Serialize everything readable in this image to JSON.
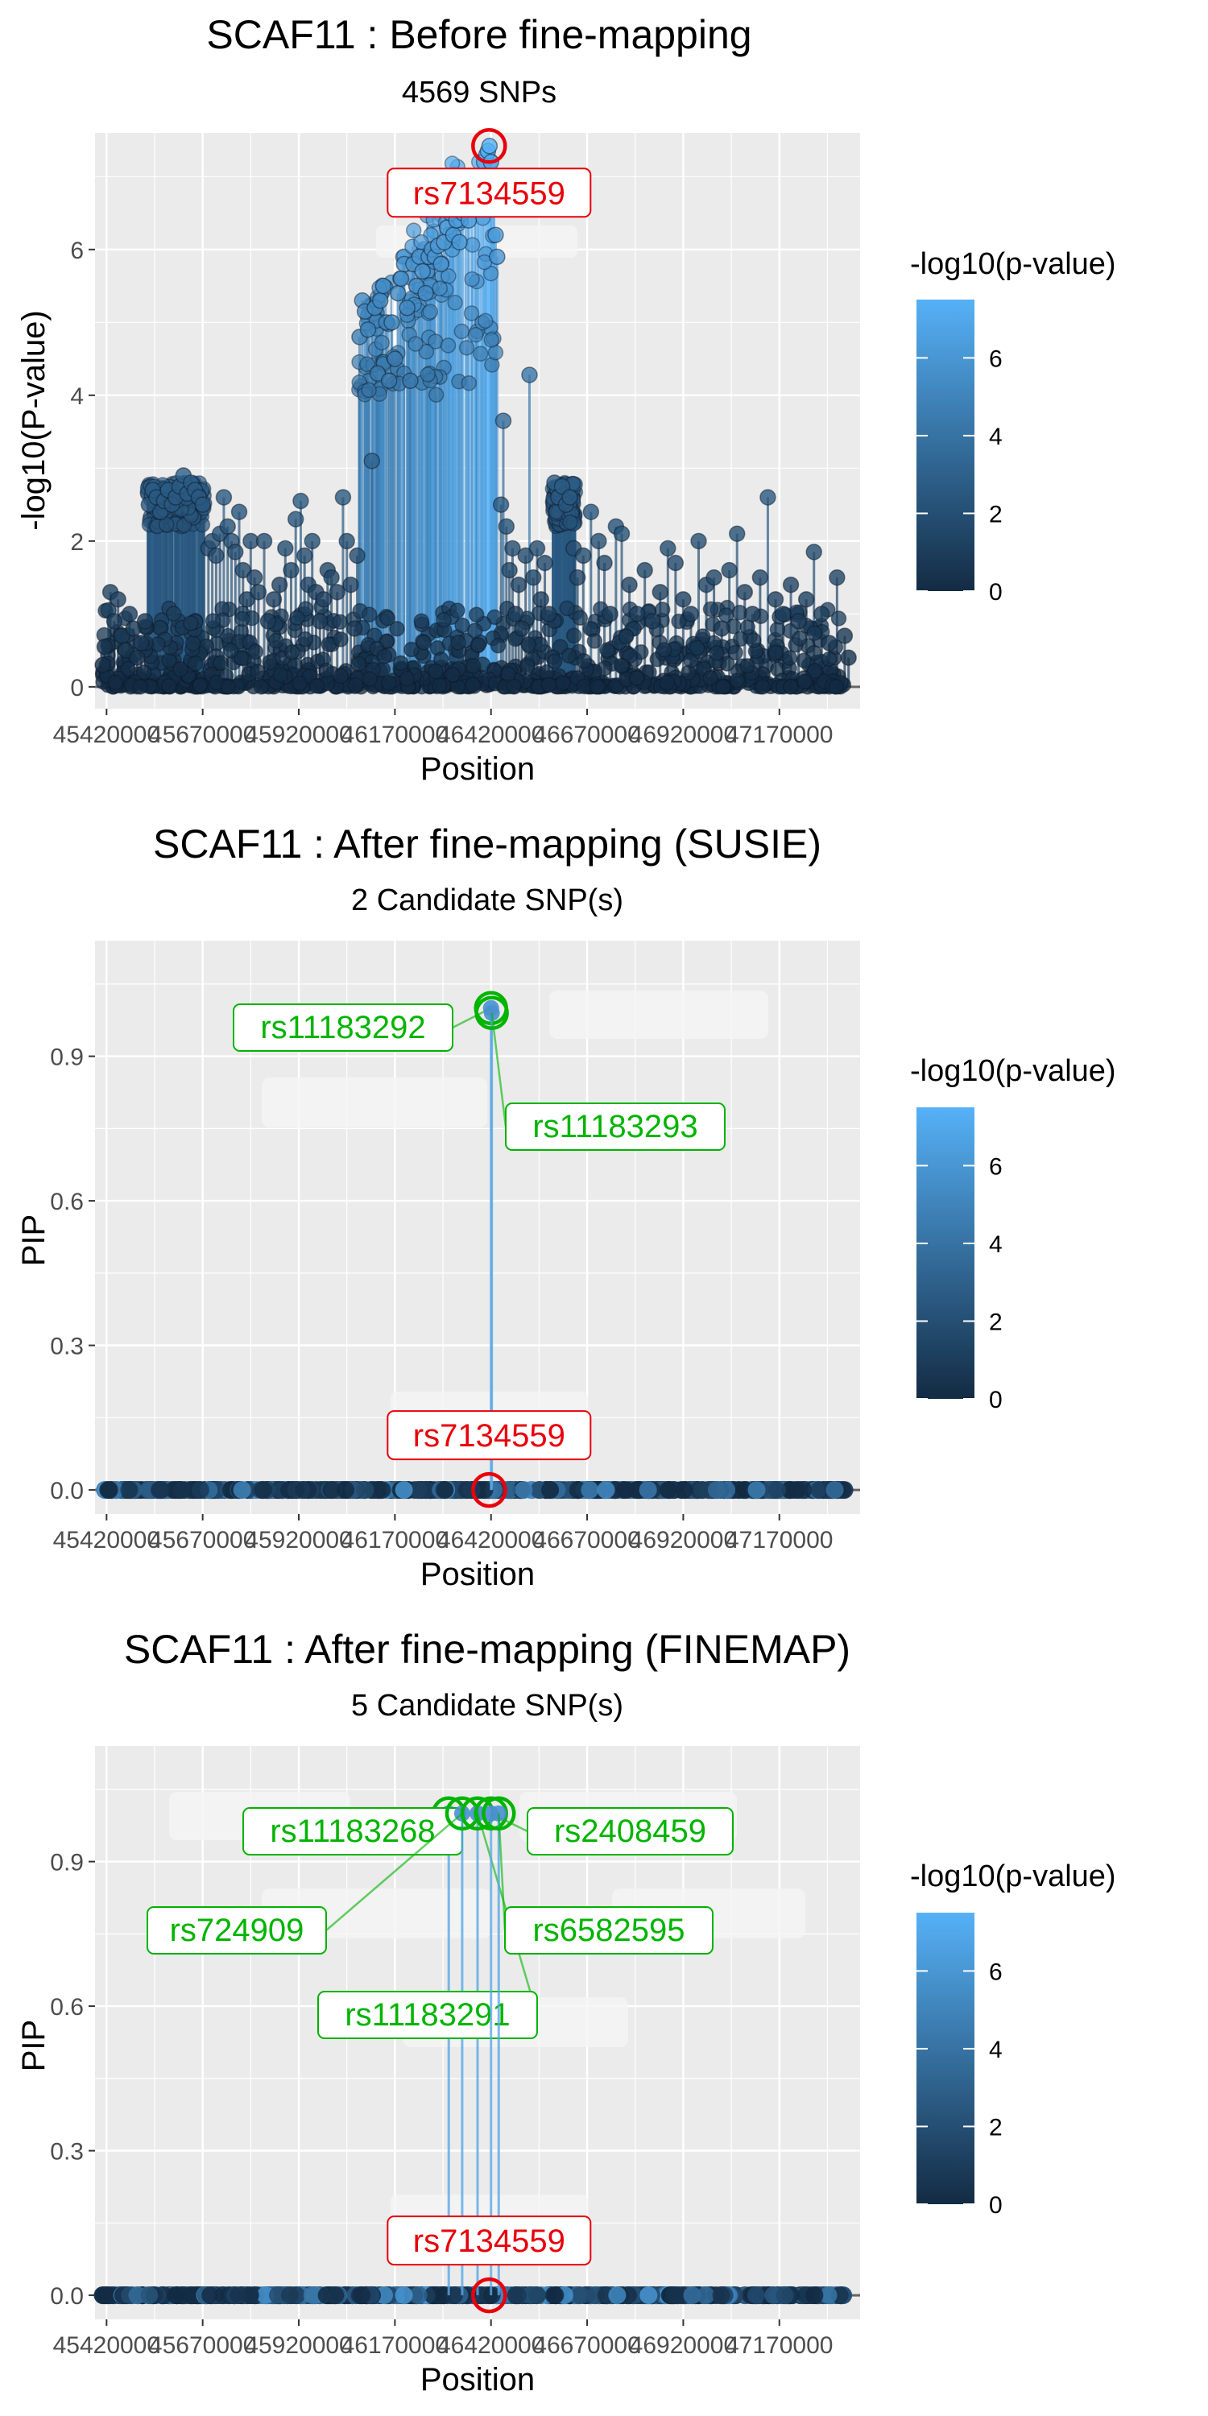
{
  "chart_data": [
    {
      "type": "scatter",
      "title": "SCAF11 : Before fine-mapping",
      "subtitle": "4569 SNPs",
      "xlabel": "Position",
      "ylabel": "-log10(P-value)",
      "xlim": [
        45390000,
        47380000
      ],
      "ylim": [
        -0.3,
        7.6
      ],
      "yticks": [
        0,
        2,
        4,
        6
      ],
      "xtick_values": [
        45420000,
        45670000,
        45920000,
        46170000,
        46420000,
        46670000,
        46920000,
        47170000
      ],
      "xticks": [
        "45420000",
        "45670000",
        "45920000",
        "46170000",
        "46420000",
        "46670000",
        "46920000",
        "47170000"
      ],
      "legend": {
        "title": "-log10(p-value)",
        "ticks": [
          0,
          2,
          4,
          6
        ],
        "max": 7.5,
        "position": "right"
      },
      "lead_snp": {
        "label": "rs7134559",
        "x": 46415000,
        "y": 7.42,
        "color": "#e8000b"
      },
      "labeled_snps": [],
      "points": [
        [
          45410000,
          0.3
        ],
        [
          45415000,
          0.55
        ],
        [
          45425000,
          1.05
        ],
        [
          45430000,
          1.3
        ],
        [
          45440000,
          0.9
        ],
        [
          45450000,
          1.2
        ],
        [
          45460000,
          0.7
        ],
        [
          45470000,
          0.5
        ],
        [
          45480000,
          1.0
        ],
        [
          45490000,
          0.8
        ],
        [
          45500000,
          0.4
        ],
        [
          45510000,
          0.6
        ],
        [
          45520000,
          0.9
        ],
        [
          45530000,
          2.5
        ],
        [
          45540000,
          2.7
        ],
        [
          45550000,
          2.6
        ],
        [
          45560000,
          2.4
        ],
        [
          45570000,
          2.55
        ],
        [
          45580000,
          2.7
        ],
        [
          45590000,
          2.5
        ],
        [
          45600000,
          2.6
        ],
        [
          45610000,
          2.75
        ],
        [
          45620000,
          2.9
        ],
        [
          45630000,
          2.65
        ],
        [
          45640000,
          2.8
        ],
        [
          45650000,
          2.7
        ],
        [
          45660000,
          2.6
        ],
        [
          45670000,
          2.5
        ],
        [
          45685000,
          1.9
        ],
        [
          45695000,
          2.0
        ],
        [
          45705000,
          1.8
        ],
        [
          45715000,
          2.1
        ],
        [
          45725000,
          2.6
        ],
        [
          45735000,
          2.2
        ],
        [
          45745000,
          2.0
        ],
        [
          45755000,
          1.85
        ],
        [
          45765000,
          2.4
        ],
        [
          45775000,
          1.6
        ],
        [
          45785000,
          1.2
        ],
        [
          45795000,
          2.0
        ],
        [
          45805000,
          1.5
        ],
        [
          45815000,
          1.3
        ],
        [
          45830000,
          2.0
        ],
        [
          45840000,
          0.9
        ],
        [
          45855000,
          1.2
        ],
        [
          45870000,
          1.4
        ],
        [
          45885000,
          1.9
        ],
        [
          45900000,
          1.6
        ],
        [
          45912000,
          2.3
        ],
        [
          45925000,
          2.55
        ],
        [
          45935000,
          1.8
        ],
        [
          45945000,
          1.4
        ],
        [
          45955000,
          2.0
        ],
        [
          45965000,
          1.3
        ],
        [
          45975000,
          0.9
        ],
        [
          45985000,
          1.2
        ],
        [
          45995000,
          1.6
        ],
        [
          46005000,
          1.5
        ],
        [
          46020000,
          1.3
        ],
        [
          46035000,
          2.6
        ],
        [
          46045000,
          2.0
        ],
        [
          46055000,
          1.4
        ],
        [
          46065000,
          0.8
        ],
        [
          46072000,
          1.8
        ],
        [
          46078000,
          4.8
        ],
        [
          46085000,
          5.3
        ],
        [
          46092000,
          5.15
        ],
        [
          46100000,
          4.9
        ],
        [
          46110000,
          3.1
        ],
        [
          46118000,
          5.2
        ],
        [
          46125000,
          4.3
        ],
        [
          46132000,
          5.3
        ],
        [
          46140000,
          5.5
        ],
        [
          46148000,
          5.0
        ],
        [
          46155000,
          4.2
        ],
        [
          46162000,
          5.0
        ],
        [
          46170000,
          4.5
        ],
        [
          46178000,
          5.4
        ],
        [
          46186000,
          5.6
        ],
        [
          46194000,
          5.8
        ],
        [
          46202000,
          5.2
        ],
        [
          46210000,
          4.2
        ],
        [
          46218000,
          5.8
        ],
        [
          46226000,
          5.5
        ],
        [
          46234000,
          5.9
        ],
        [
          46242000,
          5.7
        ],
        [
          46250000,
          5.4
        ],
        [
          46258000,
          5.9
        ],
        [
          46266000,
          6.0
        ],
        [
          46274000,
          5.9
        ],
        [
          46282000,
          6.05
        ],
        [
          46290000,
          5.8
        ],
        [
          46298000,
          6.1
        ],
        [
          46306000,
          6.3
        ],
        [
          46314000,
          6.5
        ],
        [
          46322000,
          6.2
        ],
        [
          46330000,
          6.4
        ],
        [
          46338000,
          6.1
        ],
        [
          46346000,
          6.5
        ],
        [
          46354000,
          6.7
        ],
        [
          46362000,
          6.4
        ],
        [
          46370000,
          6.8
        ],
        [
          46378000,
          6.6
        ],
        [
          46386000,
          6.9
        ],
        [
          46394000,
          7.0
        ],
        [
          46402000,
          7.2
        ],
        [
          46408000,
          7.3
        ],
        [
          46412000,
          7.35
        ],
        [
          46416000,
          7.42
        ],
        [
          46420000,
          7.2
        ],
        [
          46425000,
          7.0
        ],
        [
          46428000,
          6.8
        ],
        [
          46432000,
          6.2
        ],
        [
          46436000,
          5.9
        ],
        [
          46446000,
          2.5
        ],
        [
          46452000,
          3.65
        ],
        [
          46460000,
          2.2
        ],
        [
          46468000,
          1.6
        ],
        [
          46476000,
          1.9
        ],
        [
          46484000,
          1.0
        ],
        [
          46492000,
          1.4
        ],
        [
          46500000,
          0.8
        ],
        [
          46510000,
          1.8
        ],
        [
          46520000,
          4.28
        ],
        [
          46530000,
          1.5
        ],
        [
          46540000,
          1.9
        ],
        [
          46550000,
          1.2
        ],
        [
          46560000,
          1.7
        ],
        [
          46570000,
          1.0
        ],
        [
          46585000,
          2.8
        ],
        [
          46595000,
          2.6
        ],
        [
          46605000,
          2.75
        ],
        [
          46615000,
          2.5
        ],
        [
          46625000,
          2.6
        ],
        [
          46635000,
          1.9
        ],
        [
          46645000,
          1.5
        ],
        [
          46660000,
          1.8
        ],
        [
          46680000,
          2.4
        ],
        [
          46700000,
          2.0
        ],
        [
          46715000,
          1.7
        ],
        [
          46730000,
          1.0
        ],
        [
          46745000,
          2.2
        ],
        [
          46760000,
          2.1
        ],
        [
          46780000,
          1.4
        ],
        [
          46800000,
          1.0
        ],
        [
          46820000,
          1.6
        ],
        [
          46840000,
          0.9
        ],
        [
          46860000,
          1.3
        ],
        [
          46880000,
          1.9
        ],
        [
          46900000,
          1.7
        ],
        [
          46920000,
          1.2
        ],
        [
          46940000,
          1.0
        ],
        [
          46960000,
          2.0
        ],
        [
          46980000,
          1.4
        ],
        [
          47000000,
          1.5
        ],
        [
          47020000,
          0.8
        ],
        [
          47040000,
          1.6
        ],
        [
          47060000,
          2.1
        ],
        [
          47080000,
          1.3
        ],
        [
          47100000,
          1.0
        ],
        [
          47120000,
          1.5
        ],
        [
          47140000,
          2.6
        ],
        [
          47160000,
          1.2
        ],
        [
          47180000,
          1.0
        ],
        [
          47200000,
          1.4
        ],
        [
          47220000,
          0.9
        ],
        [
          47240000,
          1.2
        ],
        [
          47260000,
          1.85
        ],
        [
          47280000,
          1.0
        ],
        [
          47300000,
          0.6
        ],
        [
          47320000,
          1.5
        ],
        [
          47340000,
          0.7
        ],
        [
          47350000,
          0.4
        ]
      ]
    },
    {
      "type": "scatter",
      "title": "SCAF11 : After fine-mapping (SUSIE)",
      "subtitle": "2 Candidate SNP(s)",
      "xlabel": "Position",
      "ylabel": "PIP",
      "xlim": [
        45390000,
        47380000
      ],
      "ylim": [
        -0.05,
        1.14
      ],
      "yticks": [
        0.0,
        0.3,
        0.6,
        0.9
      ],
      "yticklabels": [
        "0.0",
        "0.3",
        "0.6",
        "0.9"
      ],
      "xtick_values": [
        45420000,
        45670000,
        45920000,
        46170000,
        46420000,
        46670000,
        46920000,
        47170000
      ],
      "xticks": [
        "45420000",
        "45670000",
        "45920000",
        "46170000",
        "46420000",
        "46670000",
        "46920000",
        "47170000"
      ],
      "legend": {
        "title": "-log10(p-value)",
        "ticks": [
          0,
          2,
          4,
          6
        ],
        "max": 7.5,
        "position": "right"
      },
      "lead_snp": {
        "label": "rs7134559",
        "x": 46415000,
        "y": 0.0,
        "color": "#e8000b"
      },
      "labeled_snps": [
        {
          "label": "rs11183292",
          "x": 46420000,
          "y": 1.0,
          "color": "#00b400"
        },
        {
          "label": "rs11183293",
          "x": 46422000,
          "y": 0.99,
          "color": "#00b400"
        }
      ],
      "points": []
    },
    {
      "type": "scatter",
      "title": "SCAF11 : After fine-mapping (FINEMAP)",
      "subtitle": "5 Candidate SNP(s)",
      "xlabel": "Position",
      "ylabel": "PIP",
      "xlim": [
        45390000,
        47380000
      ],
      "ylim": [
        -0.05,
        1.14
      ],
      "yticks": [
        0.0,
        0.3,
        0.6,
        0.9
      ],
      "yticklabels": [
        "0.0",
        "0.3",
        "0.6",
        "0.9"
      ],
      "xtick_values": [
        45420000,
        45670000,
        45920000,
        46170000,
        46420000,
        46670000,
        46920000,
        47170000
      ],
      "xticks": [
        "45420000",
        "45670000",
        "45920000",
        "46170000",
        "46420000",
        "46670000",
        "46920000",
        "47170000"
      ],
      "legend": {
        "title": "-log10(p-value)",
        "ticks": [
          0,
          2,
          4,
          6
        ],
        "max": 7.5,
        "position": "right"
      },
      "lead_snp": {
        "label": "rs7134559",
        "x": 46415000,
        "y": 0.0,
        "color": "#e8000b"
      },
      "labeled_snps": [
        {
          "label": "rs11183268",
          "x": 46310000,
          "y": 1.0,
          "color": "#00b400"
        },
        {
          "label": "rs724909",
          "x": 46345000,
          "y": 1.0,
          "color": "#00b400"
        },
        {
          "label": "rs11183291",
          "x": 46385000,
          "y": 1.0,
          "color": "#00b400"
        },
        {
          "label": "rs2408459",
          "x": 46420000,
          "y": 1.0,
          "color": "#00b400"
        },
        {
          "label": "rs6582595",
          "x": 46440000,
          "y": 1.0,
          "color": "#00b400"
        }
      ],
      "points": []
    }
  ]
}
